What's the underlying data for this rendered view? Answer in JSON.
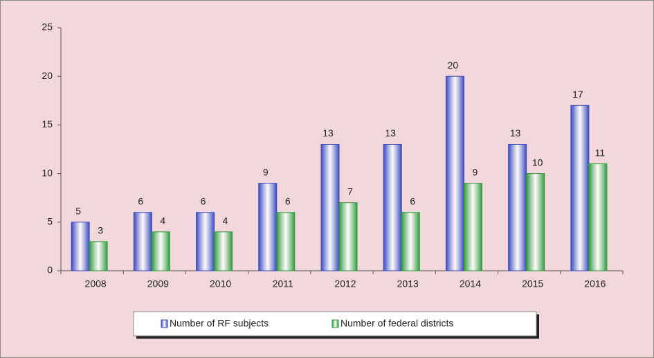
{
  "chart_data": {
    "type": "bar",
    "categories": [
      "2008",
      "2009",
      "2010",
      "2011",
      "2012",
      "2013",
      "2014",
      "2015",
      "2016"
    ],
    "series": [
      {
        "name": "Number of RF subjects",
        "color": "#3949c0",
        "values": [
          5,
          6,
          6,
          9,
          13,
          13,
          20,
          13,
          17
        ]
      },
      {
        "name": "Number of federal districts",
        "color": "#2e9a3a",
        "values": [
          3,
          4,
          4,
          6,
          7,
          6,
          9,
          10,
          11
        ]
      }
    ],
    "ylim": [
      0,
      25
    ],
    "yticks": [
      0,
      5,
      10,
      15,
      20,
      25
    ],
    "grid": false,
    "legend": "bottom"
  }
}
